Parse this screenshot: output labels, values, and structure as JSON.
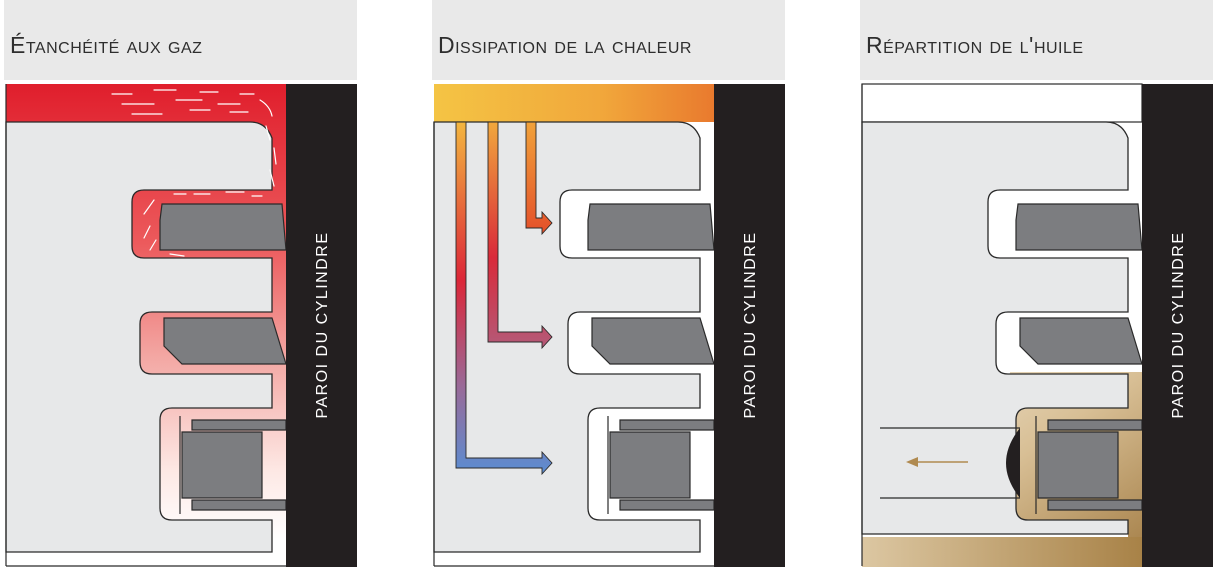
{
  "panels": [
    {
      "title": "Étanchéité aux gaz",
      "wall_label": "PAROI DU CYLINDRE"
    },
    {
      "title": "Dissipation de la chaleur",
      "wall_label": "PAROI DU CYLINDRE"
    },
    {
      "title": "Répartition de l'huile",
      "wall_label": "PAROI DU CYLINDRE"
    }
  ],
  "colors": {
    "piston": "#e7e8e9",
    "ring": "#7c7d80",
    "wall": "#231f20",
    "gas": "#e0202e",
    "heat_start": "#f5c242",
    "heat_end": "#5b8ccf",
    "oil": "#b08a50"
  }
}
